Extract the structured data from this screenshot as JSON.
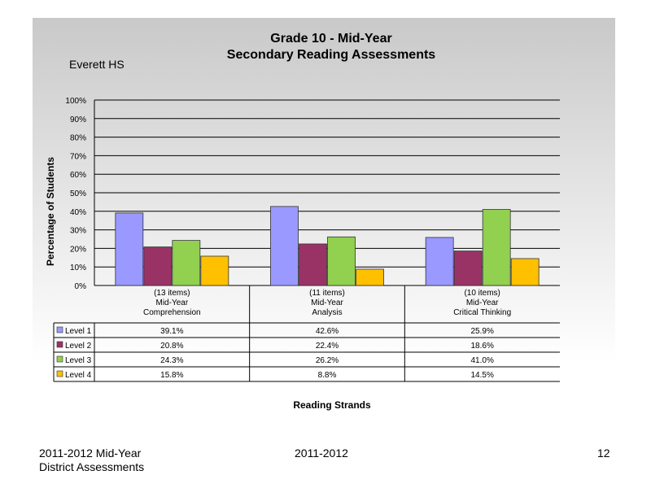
{
  "footer": {
    "left_line1": "2011-2012  Mid-Year",
    "left_line2": "District Assessments",
    "center": "2011-2012",
    "page_number": "12"
  },
  "chart_data": {
    "type": "bar",
    "title": "Grade 10 - Mid-Year",
    "subtitle": "Secondary Reading Assessments",
    "school": "Everett HS",
    "ylabel": "Percentage of Students",
    "xlabel": "Reading Strands",
    "ylim": [
      0,
      100
    ],
    "yticks": [
      "0%",
      "10%",
      "20%",
      "30%",
      "40%",
      "50%",
      "60%",
      "70%",
      "80%",
      "90%",
      "100%"
    ],
    "grid": true,
    "legend": "data-table",
    "categories": [
      [
        "(13 items)",
        "Mid-Year",
        "Comprehension"
      ],
      [
        "(11 items)",
        "Mid-Year",
        "Analysis"
      ],
      [
        "(10 items)",
        "Mid-Year",
        "Critical Thinking"
      ]
    ],
    "series": [
      {
        "name": "Level 1",
        "color": "#9999ff",
        "values": [
          39.1,
          42.6,
          25.9
        ],
        "labels": [
          "39.1%",
          "42.6%",
          "25.9%"
        ]
      },
      {
        "name": "Level 2",
        "color": "#993366",
        "values": [
          20.8,
          22.4,
          18.6
        ],
        "labels": [
          "20.8%",
          "22.4%",
          "18.6%"
        ]
      },
      {
        "name": "Level 3",
        "color": "#92d050",
        "values": [
          24.3,
          26.2,
          41.0
        ],
        "labels": [
          "24.3%",
          "26.2%",
          "41.0%"
        ]
      },
      {
        "name": "Level 4",
        "color": "#ffc000",
        "values": [
          15.8,
          8.8,
          14.5
        ],
        "labels": [
          "15.8%",
          "8.8%",
          "14.5%"
        ]
      }
    ]
  }
}
